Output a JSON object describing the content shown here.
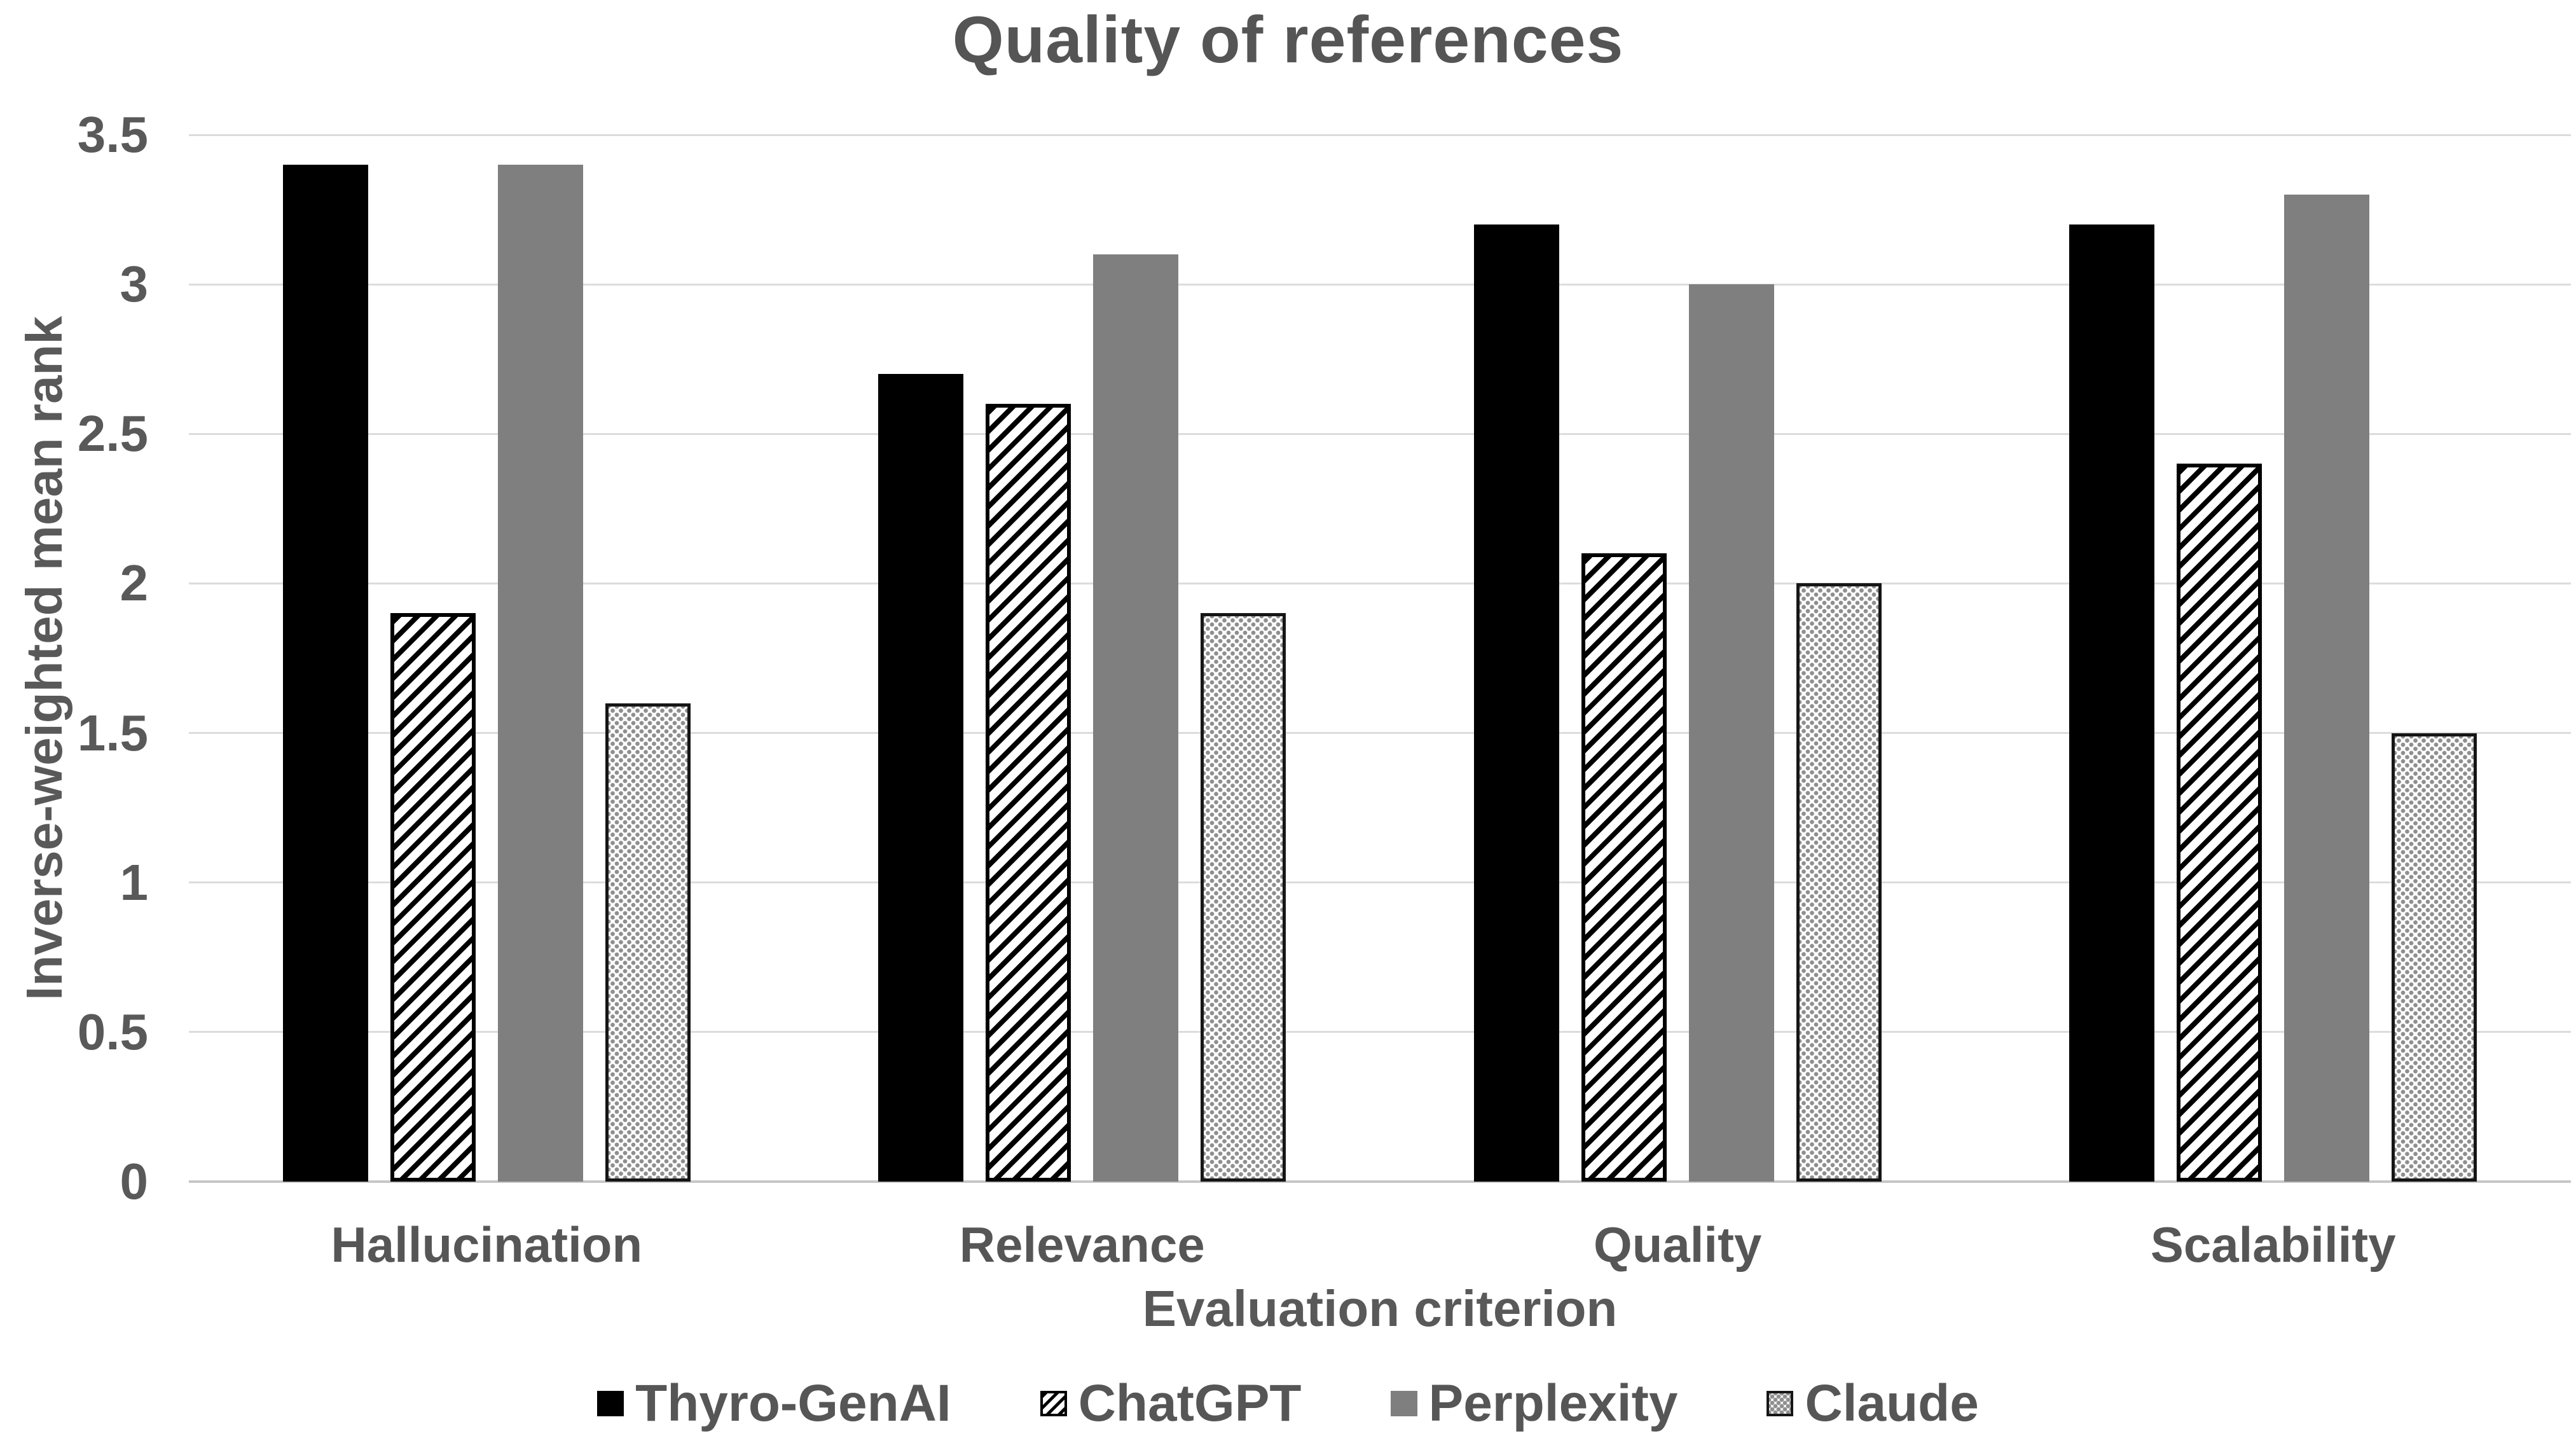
{
  "chart_data": {
    "type": "bar",
    "title": "Quality of references",
    "xlabel": "Evaluation criterion",
    "ylabel": "Inverse-weighted mean rank",
    "ylim": [
      0,
      3.5
    ],
    "ytick_step": 0.5,
    "yticks": [
      {
        "value": 3.5,
        "label": "3.5"
      },
      {
        "value": 3.0,
        "label": "3"
      },
      {
        "value": 2.5,
        "label": "2.5"
      },
      {
        "value": 2.0,
        "label": "2"
      },
      {
        "value": 1.5,
        "label": "1.5"
      },
      {
        "value": 1.0,
        "label": "1"
      },
      {
        "value": 0.5,
        "label": "0.5"
      },
      {
        "value": 0.0,
        "label": "0"
      }
    ],
    "grid": true,
    "legend_position": "bottom",
    "categories": [
      "Hallucination",
      "Relevance",
      "Quality",
      "Scalability"
    ],
    "series": [
      {
        "name": "Thyro-GenAI",
        "pattern": "solid-black",
        "color": "#000000",
        "values": [
          3.4,
          2.7,
          3.2,
          3.2
        ]
      },
      {
        "name": "ChatGPT",
        "pattern": "diagonal-hatch",
        "color": "#000000",
        "values": [
          1.9,
          2.6,
          2.1,
          2.4
        ]
      },
      {
        "name": "Perplexity",
        "pattern": "solid-gray",
        "color": "#7f7f7f",
        "values": [
          3.4,
          3.1,
          3.0,
          3.3
        ]
      },
      {
        "name": "Claude",
        "pattern": "dotted-grid",
        "color": "#8f8f8f",
        "values": [
          1.6,
          1.9,
          2.0,
          1.5
        ]
      }
    ],
    "colors": {
      "title_text": "#555555",
      "axis_text": "#595959",
      "gridline": "#dcdcdc",
      "axis_line": "#c6c6c6",
      "background": "#ffffff"
    }
  }
}
